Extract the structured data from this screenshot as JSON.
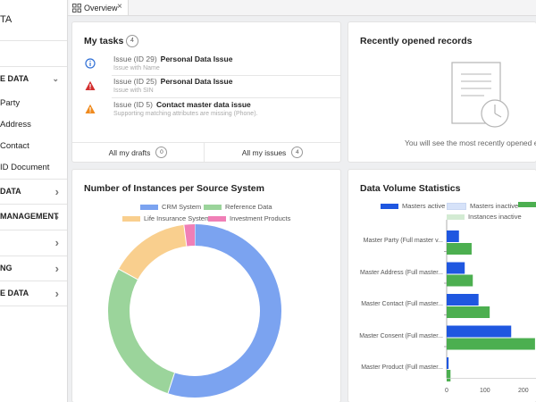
{
  "app": {
    "title": "TA"
  },
  "sidebar": {
    "items": [
      {
        "label": "E DATA",
        "section": true,
        "chevron": "down"
      },
      {
        "label": "Party",
        "section": false
      },
      {
        "label": "Address",
        "section": false
      },
      {
        "label": "Contact",
        "section": false
      },
      {
        "label": "ID Document",
        "section": false
      },
      {
        "label": "DATA",
        "section": true,
        "chevron": "right"
      },
      {
        "label": "MANAGEMENT",
        "section": true,
        "chevron": "right"
      },
      {
        "label": "",
        "section": true,
        "chevron": "right"
      },
      {
        "label": "NG",
        "section": true,
        "chevron": "right"
      },
      {
        "label": "E DATA",
        "section": true,
        "chevron": "right"
      }
    ]
  },
  "tabs": [
    {
      "label": "Overview",
      "icon": "dashboard-icon",
      "close": "×"
    }
  ],
  "my_tasks": {
    "title": "My tasks",
    "count": "4",
    "items": [
      {
        "id": "Issue (ID 29)",
        "title": "Personal Data Issue",
        "subtitle": "Issue with Name",
        "icon": "info-icon",
        "color": "#2f6fd6"
      },
      {
        "id": "Issue (ID 25)",
        "title": "Personal Data Issue",
        "subtitle": "Issue with SIN",
        "icon": "error-triangle-icon",
        "color": "#d32f2f"
      },
      {
        "id": "Issue (ID 5)",
        "title": "Contact master data issue",
        "subtitle": "Supporting matching attributes are missing (Phone).",
        "icon": "warning-triangle-icon",
        "color": "#ef8a1e"
      }
    ],
    "footer": {
      "drafts_label": "All my drafts",
      "drafts_count": "0",
      "issues_label": "All my issues",
      "issues_count": "4"
    }
  },
  "recent": {
    "title": "Recently opened records",
    "empty_message": "You will see the most recently opened entr"
  },
  "instances_chart": {
    "title": "Number of Instances per Source System"
  },
  "volume_chart": {
    "title": "Data Volume Statistics"
  },
  "chart_data": [
    {
      "type": "pie",
      "title": "Number of Instances per Source System",
      "donut": true,
      "categories": [
        "CRM System",
        "Reference Data",
        "Life Insurance System",
        "Investment Products"
      ],
      "values": [
        55,
        28,
        15,
        2
      ],
      "colors": [
        "#7ba3f0",
        "#9bd49b",
        "#f9cf8e",
        "#f07fb6"
      ],
      "legend_position": "top"
    },
    {
      "type": "bar",
      "orientation": "horizontal",
      "title": "Data Volume Statistics",
      "categories": [
        "Master Party (Full master v...",
        "Master Address (Full master...",
        "Master Contact (Full master...",
        "Master Consent (Full master...",
        "Master Product (Full master..."
      ],
      "series": [
        {
          "name": "Masters active",
          "color": "#1f57e0",
          "values": [
            32,
            47,
            83,
            168,
            5
          ]
        },
        {
          "name": "Masters inactive",
          "color": "#d6e2f9",
          "values": [
            0,
            0,
            0,
            0,
            0
          ]
        },
        {
          "name": "",
          "color": "#4caf50",
          "values": [
            65,
            68,
            112,
            230,
            10
          ]
        },
        {
          "name": "Instances inactive",
          "color": "#d3ebd3",
          "values": [
            0,
            0,
            0,
            0,
            0
          ]
        }
      ],
      "xticks": [
        "0",
        "100",
        "200"
      ],
      "xlim": [
        0,
        230
      ],
      "legend_position": "top"
    }
  ]
}
